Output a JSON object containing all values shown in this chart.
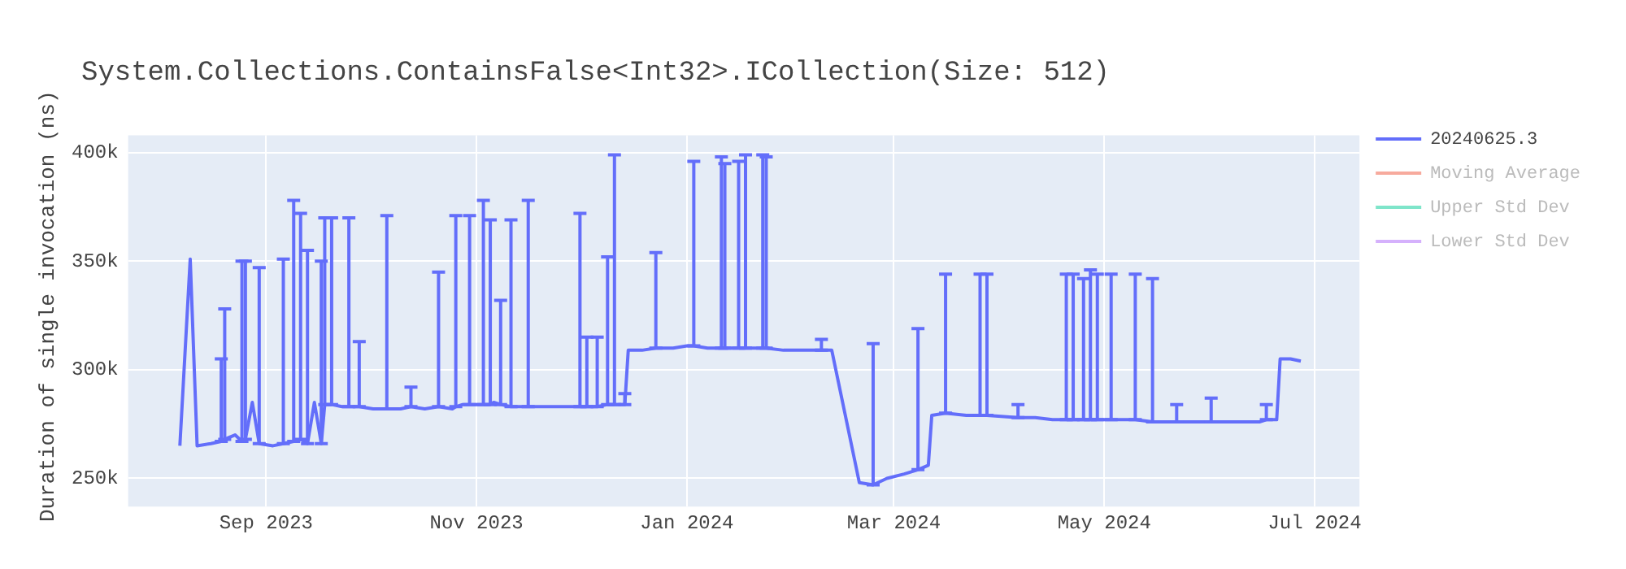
{
  "chart_data": {
    "type": "line",
    "title": "System.Collections.ContainsFalse<Int32>.ICollection(Size: 512)",
    "ylabel": "Duration of single invocation (ns)",
    "x": [
      "2023-08-07",
      "2023-08-10",
      "2023-08-12",
      "2023-08-16",
      "2023-08-19",
      "2023-08-20",
      "2023-08-23",
      "2023-08-25",
      "2023-08-26",
      "2023-08-28",
      "2023-08-30",
      "2023-09-03",
      "2023-09-06",
      "2023-09-09",
      "2023-09-11",
      "2023-09-13",
      "2023-09-15",
      "2023-09-17",
      "2023-09-18",
      "2023-09-20",
      "2023-09-23",
      "2023-09-25",
      "2023-09-28",
      "2023-10-02",
      "2023-10-06",
      "2023-10-10",
      "2023-10-13",
      "2023-10-17",
      "2023-10-21",
      "2023-10-25",
      "2023-10-26",
      "2023-10-28",
      "2023-10-30",
      "2023-11-03",
      "2023-11-05",
      "2023-11-06",
      "2023-11-08",
      "2023-11-11",
      "2023-11-14",
      "2023-11-16",
      "2023-11-21",
      "2023-11-26",
      "2023-12-01",
      "2023-12-03",
      "2023-12-06",
      "2023-12-09",
      "2023-12-11",
      "2023-12-14",
      "2023-12-15",
      "2023-12-19",
      "2023-12-23",
      "2023-12-28",
      "2024-01-01",
      "2024-01-03",
      "2024-01-07",
      "2024-01-11",
      "2024-01-12",
      "2024-01-16",
      "2024-01-18",
      "2024-01-23",
      "2024-01-24",
      "2024-01-29",
      "2024-02-04",
      "2024-02-09",
      "2024-02-12",
      "2024-02-20",
      "2024-02-24",
      "2024-02-28",
      "2024-03-04",
      "2024-03-08",
      "2024-03-11",
      "2024-03-12",
      "2024-03-16",
      "2024-03-22",
      "2024-03-26",
      "2024-03-28",
      "2024-04-06",
      "2024-04-11",
      "2024-04-16",
      "2024-04-20",
      "2024-04-22",
      "2024-04-25",
      "2024-04-27",
      "2024-04-29",
      "2024-05-03",
      "2024-05-06",
      "2024-05-10",
      "2024-05-15",
      "2024-05-19",
      "2024-05-22",
      "2024-05-27",
      "2024-06-01",
      "2024-06-08",
      "2024-06-15",
      "2024-06-17",
      "2024-06-20",
      "2024-06-21",
      "2024-06-24",
      "2024-06-27"
    ],
    "series": [
      {
        "name": "20240625.3",
        "color": "#636efa",
        "values": [
          265000,
          351000,
          265000,
          266000,
          267000,
          268000,
          270000,
          267000,
          268000,
          285000,
          266000,
          265000,
          266000,
          267000,
          268000,
          266000,
          285000,
          266000,
          284000,
          284000,
          283000,
          283000,
          283000,
          282000,
          282000,
          282000,
          283000,
          282000,
          283000,
          282000,
          283000,
          284000,
          284000,
          284000,
          284000,
          285000,
          284000,
          283000,
          283000,
          283000,
          283000,
          283000,
          283000,
          283000,
          283000,
          284000,
          284000,
          284000,
          309000,
          309000,
          310000,
          310000,
          311000,
          311000,
          310000,
          310000,
          310000,
          310000,
          310000,
          310000,
          310000,
          309000,
          309000,
          309000,
          309000,
          248000,
          247000,
          250000,
          252000,
          254000,
          256000,
          279000,
          280000,
          279000,
          279000,
          279000,
          278000,
          278000,
          277000,
          277000,
          277000,
          277000,
          277000,
          277000,
          277000,
          277000,
          277000,
          276000,
          276000,
          276000,
          276000,
          276000,
          276000,
          276000,
          277000,
          277000,
          305000,
          305000,
          304000
        ],
        "errors": [
          null,
          null,
          null,
          null,
          [
            267000,
            305000
          ],
          [
            268000,
            328000
          ],
          null,
          [
            267000,
            350000
          ],
          [
            268000,
            350000
          ],
          null,
          [
            266000,
            347000
          ],
          null,
          [
            266000,
            351000
          ],
          [
            267000,
            378000
          ],
          [
            268000,
            372000
          ],
          [
            266000,
            355000
          ],
          null,
          [
            266000,
            350000
          ],
          [
            284000,
            370000
          ],
          [
            284000,
            370000
          ],
          null,
          [
            283000,
            370000
          ],
          [
            283000,
            313000
          ],
          null,
          [
            282000,
            371000
          ],
          null,
          [
            283000,
            292000
          ],
          null,
          [
            283000,
            345000
          ],
          null,
          [
            283000,
            371000
          ],
          null,
          [
            284000,
            371000
          ],
          [
            284000,
            378000
          ],
          [
            284000,
            369000
          ],
          null,
          [
            284000,
            332000
          ],
          [
            283000,
            369000
          ],
          null,
          [
            283000,
            378000
          ],
          null,
          null,
          [
            283000,
            372000
          ],
          [
            283000,
            315000
          ],
          [
            283000,
            315000
          ],
          [
            284000,
            352000
          ],
          [
            284000,
            399000
          ],
          [
            284000,
            289000
          ],
          null,
          null,
          [
            310000,
            354000
          ],
          null,
          null,
          [
            311000,
            396000
          ],
          null,
          [
            310000,
            398000
          ],
          [
            310000,
            395000
          ],
          [
            310000,
            396000
          ],
          [
            310000,
            399000
          ],
          [
            310000,
            399000
          ],
          [
            310000,
            398000
          ],
          null,
          null,
          [
            309000,
            314000
          ],
          null,
          null,
          [
            247000,
            312000
          ],
          null,
          null,
          [
            254000,
            319000
          ],
          null,
          null,
          [
            280000,
            344000
          ],
          null,
          [
            279000,
            344000
          ],
          [
            279000,
            344000
          ],
          [
            278000,
            284000
          ],
          null,
          null,
          [
            277000,
            344000
          ],
          [
            277000,
            344000
          ],
          [
            277000,
            342000
          ],
          [
            277000,
            346000
          ],
          [
            277000,
            344000
          ],
          [
            277000,
            344000
          ],
          null,
          [
            277000,
            344000
          ],
          [
            276000,
            342000
          ],
          null,
          [
            276000,
            284000
          ],
          null,
          [
            276000,
            287000
          ],
          null,
          null,
          [
            277000,
            284000
          ],
          null,
          null,
          null,
          null
        ]
      },
      {
        "name": "Moving Average",
        "color": "#ef553b",
        "values": [
          null,
          null,
          null,
          null,
          null,
          null,
          null,
          null,
          null,
          null,
          null,
          null,
          null,
          null,
          null,
          null,
          null,
          null,
          null,
          null,
          null,
          null,
          null,
          null,
          null,
          null,
          null,
          null,
          null,
          null,
          null,
          null,
          null,
          null,
          null,
          null,
          null,
          null,
          null,
          null,
          null,
          null,
          null,
          null,
          null,
          null,
          null,
          null,
          null,
          null,
          null,
          null,
          null,
          null,
          null,
          null,
          null,
          null,
          null,
          null,
          null,
          null,
          null,
          null,
          null,
          null,
          null,
          null,
          null,
          null,
          null,
          null,
          null,
          null,
          null,
          null,
          null,
          null,
          null,
          null,
          null,
          null,
          null,
          null,
          null,
          null,
          null,
          null,
          null,
          null,
          null,
          null,
          null,
          null,
          null,
          null,
          null,
          null,
          null
        ]
      },
      {
        "name": "Upper Std Dev",
        "color": "#00cc96",
        "values": [
          null,
          null,
          null,
          null,
          null,
          null,
          null,
          null,
          null,
          null,
          null,
          null,
          null,
          null,
          null,
          null,
          null,
          null,
          null,
          null,
          null,
          null,
          null,
          null,
          null,
          null,
          null,
          null,
          null,
          null,
          null,
          null,
          null,
          null,
          null,
          null,
          null,
          null,
          null,
          null,
          null,
          null,
          null,
          null,
          null,
          null,
          null,
          null,
          null,
          null,
          null,
          null,
          null,
          null,
          null,
          null,
          null,
          null,
          null,
          null,
          null,
          null,
          null,
          null,
          null,
          null,
          null,
          null,
          null,
          null,
          null,
          null,
          null,
          null,
          null,
          null,
          null,
          null,
          null,
          null,
          null,
          null,
          null,
          null,
          null,
          null,
          null,
          null,
          null,
          null,
          null,
          null,
          null,
          null,
          null,
          null,
          null,
          null,
          null
        ]
      },
      {
        "name": "Lower Std Dev",
        "color": "#ab63fa",
        "values": [
          null,
          null,
          null,
          null,
          null,
          null,
          null,
          null,
          null,
          null,
          null,
          null,
          null,
          null,
          null,
          null,
          null,
          null,
          null,
          null,
          null,
          null,
          null,
          null,
          null,
          null,
          null,
          null,
          null,
          null,
          null,
          null,
          null,
          null,
          null,
          null,
          null,
          null,
          null,
          null,
          null,
          null,
          null,
          null,
          null,
          null,
          null,
          null,
          null,
          null,
          null,
          null,
          null,
          null,
          null,
          null,
          null,
          null,
          null,
          null,
          null,
          null,
          null,
          null,
          null,
          null,
          null,
          null,
          null,
          null,
          null,
          null,
          null,
          null,
          null,
          null,
          null,
          null,
          null,
          null,
          null,
          null,
          null,
          null,
          null,
          null,
          null,
          null,
          null,
          null,
          null,
          null,
          null,
          null,
          null,
          null,
          null,
          null,
          null
        ]
      }
    ],
    "xlim": [
      "2023-07-23",
      "2024-07-14"
    ],
    "xticks": [
      {
        "value": "2023-09-01",
        "label": "Sep 2023"
      },
      {
        "value": "2023-11-01",
        "label": "Nov 2023"
      },
      {
        "value": "2024-01-01",
        "label": "Jan 2024"
      },
      {
        "value": "2024-03-01",
        "label": "Mar 2024"
      },
      {
        "value": "2024-05-01",
        "label": "May 2024"
      },
      {
        "value": "2024-07-01",
        "label": "Jul 2024"
      }
    ],
    "ylim": [
      237000,
      408000
    ],
    "yticks": [
      {
        "value": 250000,
        "label": "250k"
      },
      {
        "value": 300000,
        "label": "300k"
      },
      {
        "value": 350000,
        "label": "350k"
      },
      {
        "value": 400000,
        "label": "400k"
      }
    ],
    "grid": true,
    "legend": "top right",
    "marker": "none",
    "line_style": "solid"
  }
}
